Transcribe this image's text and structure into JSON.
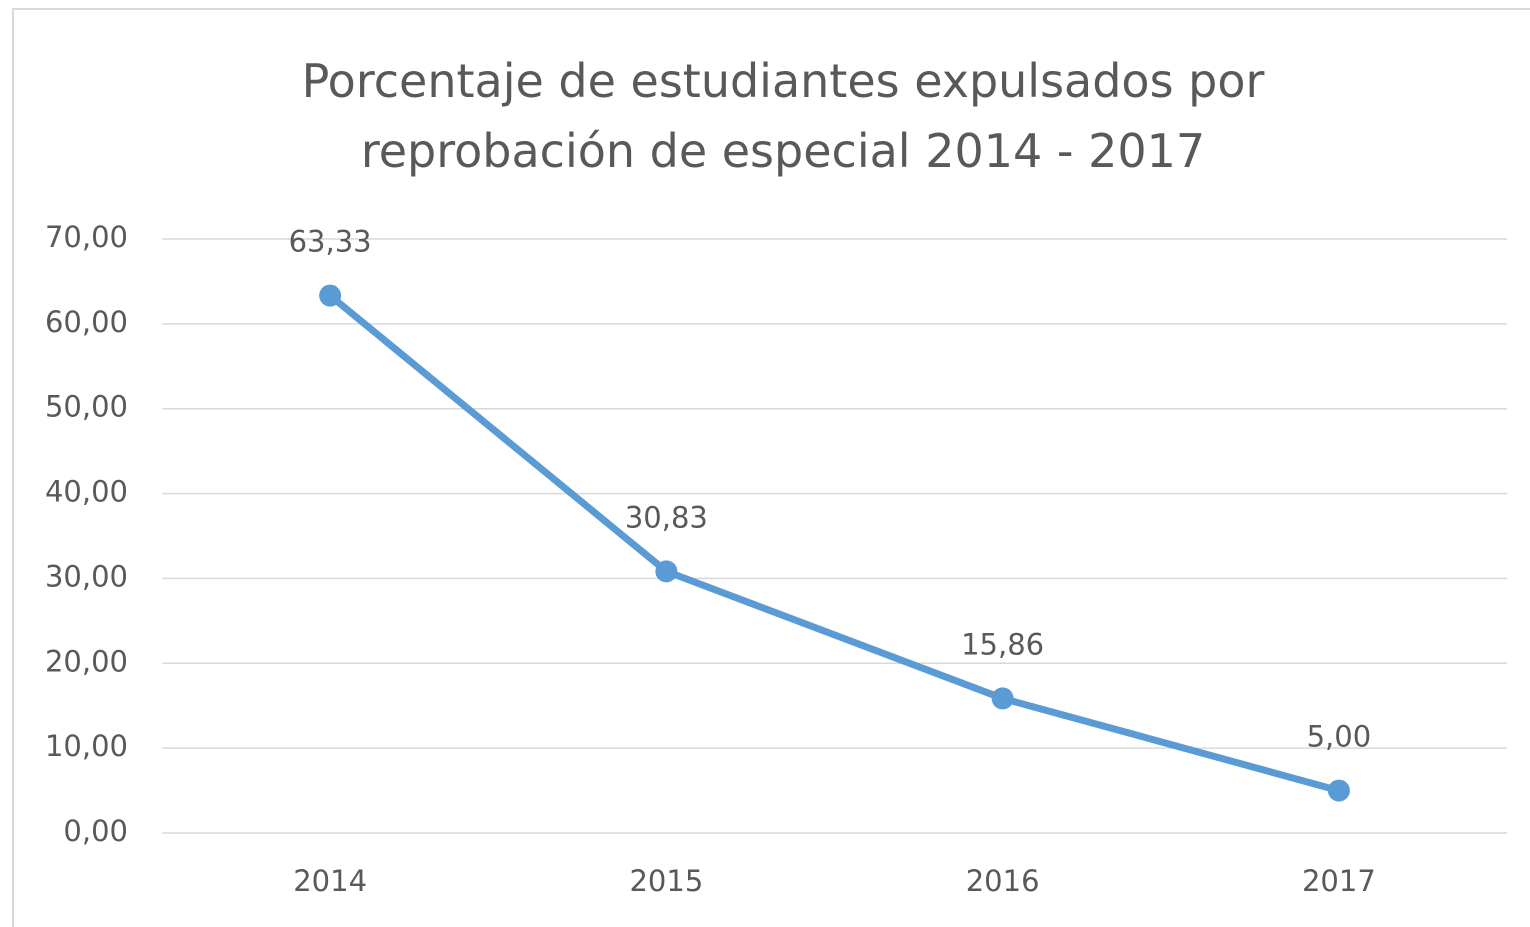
{
  "chart_data": {
    "type": "line",
    "title": "Porcentaje de estudiantes expulsados por reprobación de especial 2014 - 2017",
    "categories": [
      "2014",
      "2015",
      "2016",
      "2017"
    ],
    "series": [
      {
        "name": "Porcentaje",
        "color": "#5b9bd5",
        "values": [
          63.33,
          30.83,
          15.86,
          5.0
        ],
        "value_labels": [
          "63,33",
          "30,83",
          "15,86",
          "5,00"
        ]
      }
    ],
    "ylim": [
      0,
      70
    ],
    "yticks": [
      {
        "value": 0,
        "label": "0,00"
      },
      {
        "value": 10,
        "label": "10,00"
      },
      {
        "value": 20,
        "label": "20,00"
      },
      {
        "value": 30,
        "label": "30,00"
      },
      {
        "value": 40,
        "label": "40,00"
      },
      {
        "value": 50,
        "label": "50,00"
      },
      {
        "value": 60,
        "label": "60,00"
      },
      {
        "value": 70,
        "label": "70,00"
      }
    ],
    "grid": true
  }
}
